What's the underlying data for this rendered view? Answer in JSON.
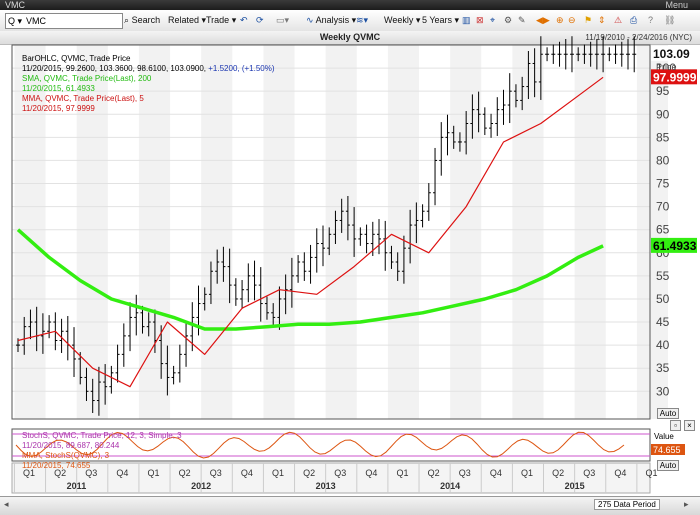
{
  "window": {
    "title": "VMC",
    "menu": "Menu"
  },
  "toolbar": {
    "symbol": "VMC",
    "search_label": "Search",
    "related_label": "Related",
    "trade_label": "Trade",
    "analysis_label": "Analysis",
    "interval_label": "Weekly",
    "range_label": "5 Years"
  },
  "header": {
    "chart_title": "Weekly QVMC",
    "date_range": "11/19/2010 - 2/24/2016 (NYC)"
  },
  "legend": {
    "line1": "BarOHLC, QVMC, Trade Price",
    "line2_a": "11/20/2015, 99.2600, 103.3600, 98.6100, 103.0900, ",
    "line2_b": "+1.5200, (+1.50%)",
    "sma1": "SMA, QVMC, Trade Price(Last), 200",
    "sma2": "11/20/2015, 61.4933",
    "mma1": "MMA, QVMC, Trade Price(Last), 5",
    "mma2": "11/20/2015, 97.9999"
  },
  "price_axis": {
    "last_label": "103.09",
    "last_sub": "Price",
    "mma_label": "97.9999",
    "sma_label": "61.4933",
    "auto": "Auto"
  },
  "lower_legend": {
    "s1": "StochS, QVMC, Trade Price,  12, 3, Simple, 3",
    "s2": "11/20/2015, 89.687, 80.244",
    "m1": "MMA, StochS(QVMC), 3",
    "m2": "11/20/2015, 74.655",
    "value_title": "Value",
    "value_label": "74.655",
    "auto": "Auto"
  },
  "status": {
    "data_period": "275 Data Period"
  },
  "colors": {
    "bars": "#000000",
    "sma": "#33ee11",
    "mma": "#dd1111",
    "stoch": "#dd5511",
    "stoch_band": "#cc55cc",
    "last": "#111111"
  },
  "chart_data": {
    "type": "line",
    "x_axis": {
      "quarters": [
        "Q1",
        "Q2",
        "Q3",
        "Q4",
        "Q1",
        "Q2",
        "Q3",
        "Q4",
        "Q1",
        "Q2",
        "Q3",
        "Q4",
        "Q1",
        "Q2",
        "Q3",
        "Q4",
        "Q1",
        "Q2",
        "Q3",
        "Q4",
        "Q1"
      ],
      "years": [
        "2011",
        "2012",
        "2013",
        "2014",
        "2015"
      ]
    },
    "y_axis": {
      "ticks": [
        30,
        35,
        40,
        45,
        50,
        55,
        60,
        65,
        70,
        75,
        80,
        85,
        90,
        95,
        100
      ],
      "ylim": [
        24,
        105
      ],
      "grid": true
    },
    "series": [
      {
        "name": "BarOHLC (close)",
        "x": [
          0,
          0.05,
          0.1,
          0.15,
          0.2,
          0.25,
          0.3,
          0.35,
          0.4,
          0.45,
          0.5,
          0.55,
          0.6,
          0.65,
          0.7,
          0.75,
          0.8,
          0.85,
          0.9,
          0.95,
          1,
          1.05,
          1.1,
          1.15,
          1.2,
          1.25,
          1.3,
          1.35,
          1.4,
          1.45,
          1.5,
          1.55,
          1.6,
          1.65,
          1.7,
          1.75,
          1.8,
          1.85,
          1.9,
          1.95,
          2,
          2.05,
          2.1,
          2.15,
          2.2,
          2.25,
          2.3,
          2.35,
          2.4,
          2.45,
          2.5,
          2.55,
          2.6,
          2.65,
          2.7,
          2.75,
          2.8,
          2.85,
          2.9,
          2.95,
          3,
          3.05,
          3.1,
          3.15,
          3.2,
          3.25,
          3.3,
          3.35,
          3.4,
          3.45,
          3.5,
          3.55,
          3.6,
          3.65,
          3.7,
          3.75,
          3.8,
          3.85,
          3.9,
          3.95,
          4,
          4.05,
          4.1,
          4.15,
          4.2,
          4.25,
          4.3,
          4.35,
          4.4,
          4.45,
          4.5,
          4.55,
          4.6,
          4.65,
          4.7,
          4.75,
          4.8,
          4.85,
          4.9,
          4.95
        ],
        "values": [
          40,
          44,
          45,
          42,
          43,
          45,
          41,
          43,
          40,
          37,
          33,
          30,
          28,
          32,
          31,
          34,
          38,
          42,
          46,
          47,
          44,
          45,
          41,
          36,
          33,
          34,
          38,
          42,
          46,
          49,
          51,
          56,
          58,
          57,
          53,
          50,
          52,
          55,
          53,
          49,
          47,
          46,
          50,
          52,
          55,
          58,
          56,
          59,
          62,
          61,
          64,
          67,
          69,
          66,
          63,
          64,
          62,
          64,
          63,
          60,
          58,
          56,
          61,
          66,
          67,
          69,
          73,
          80,
          85,
          86,
          84,
          84,
          88,
          91,
          90,
          87,
          88,
          91,
          92,
          95,
          93,
          96,
          101,
          97,
          103,
          103,
          103,
          103,
          103,
          103,
          103,
          103,
          103,
          103,
          103,
          103,
          103,
          103,
          103,
          103
        ]
      },
      {
        "name": "SMA 200",
        "x": [
          0,
          0.25,
          0.5,
          0.75,
          1,
          1.25,
          1.5,
          1.75,
          2,
          2.25,
          2.5,
          2.75,
          3,
          3.25,
          3.5,
          3.75,
          4,
          4.25,
          4.5,
          4.7
        ],
        "values": [
          65,
          59,
          54,
          50,
          48,
          46,
          43.5,
          43.5,
          44,
          44.5,
          44.5,
          45,
          46,
          47,
          48.5,
          50,
          52,
          55,
          59,
          61.5
        ]
      },
      {
        "name": "MMA 5",
        "x": [
          0,
          0.3,
          0.6,
          0.9,
          1.2,
          1.5,
          1.8,
          2.1,
          2.4,
          2.7,
          3,
          3.3,
          3.6,
          3.9,
          4.2,
          4.5,
          4.7
        ],
        "values": [
          41,
          43,
          35,
          31,
          45,
          38,
          48,
          52,
          51,
          57,
          64,
          60,
          70,
          84,
          88,
          94,
          98
        ]
      },
      {
        "name": "StochS",
        "x": [],
        "values": []
      }
    ]
  }
}
